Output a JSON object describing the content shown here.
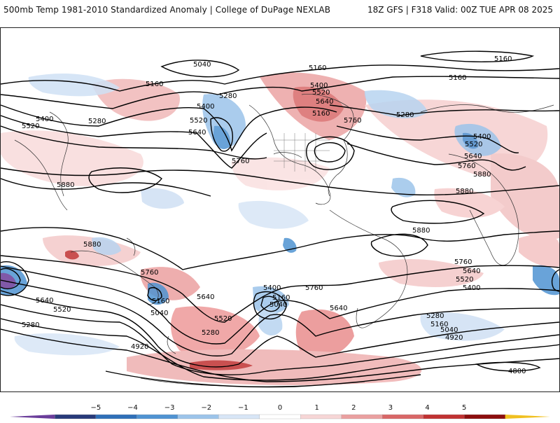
{
  "header": {
    "title": "500mb Temp 1981-2010 Standardized Anomaly | College of DuPage NEXLAB",
    "model_info": "18Z GFS | F318 Valid: 00Z TUE APR 08 2025"
  },
  "contour_labels": [
    "5040",
    "5160",
    "5160",
    "5160",
    "5160",
    "5400",
    "5520",
    "5640",
    "5160",
    "5280",
    "5400",
    "5520",
    "5640",
    "5280",
    "5400",
    "5520",
    "5280",
    "5760",
    "5760",
    "5880",
    "5400",
    "5520",
    "5640",
    "5760",
    "5880",
    "5880",
    "5880",
    "5760",
    "5640",
    "5520",
    "5400",
    "5280",
    "5160",
    "5040",
    "4920",
    "5880",
    "5760",
    "5640",
    "5520",
    "5280",
    "5160",
    "5040",
    "5640",
    "5520",
    "5280",
    "5400",
    "5160",
    "5040",
    "5760",
    "5640",
    "4920",
    "4800"
  ],
  "colorbar": {
    "tick_labels": [
      "−5",
      "−4",
      "−3",
      "−2",
      "−1",
      "0",
      "1",
      "2",
      "3",
      "4",
      "5"
    ],
    "colors": [
      "#6a3d9a",
      "#283a7a",
      "#2f6fb8",
      "#4f93d2",
      "#9cc4ea",
      "#d8e6f6",
      "#ffffff",
      "#f6d6d6",
      "#eaa0a0",
      "#d96767",
      "#c03232",
      "#8c0e0e",
      "#f0c020"
    ]
  },
  "colors": {
    "frame": "#222222",
    "contour": "#000000",
    "coast": "#333333"
  }
}
